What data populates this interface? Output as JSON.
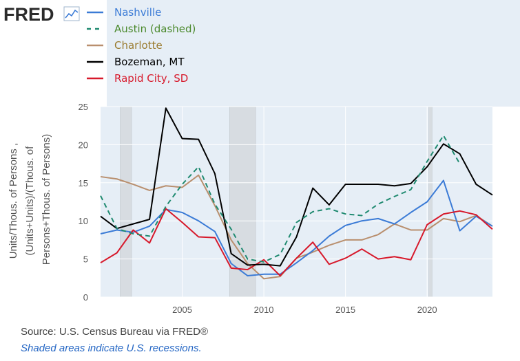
{
  "brand": {
    "logo_text": "FRED",
    "logo_icon": "fred-trend-icon"
  },
  "colors": {
    "nashville": "#3b7bd6",
    "austin": "#1f8a70",
    "charlotte": "#b98f6e",
    "bozeman": "#000000",
    "rapid_city": "#d7192b",
    "plot_bg": "#e6eef6",
    "recession": "#d7dce1",
    "legend_austin_text": "#4c8a2e",
    "legend_charlotte_text": "#9a7b2e"
  },
  "footer": {
    "source": "Source: U.S. Census Bureau via FRED®",
    "recession_note": "Shaded areas indicate U.S. recessions."
  },
  "chart_data": {
    "type": "line",
    "ylabel_lines": [
      "Units/Thous. of Persons ,",
      "(Units+Units)/(Thous. of",
      "Persons+Thous. of Persons)"
    ],
    "xlabel": "",
    "xlim": [
      2000,
      2024
    ],
    "ylim": [
      0,
      25
    ],
    "x_ticks": [
      2005,
      2010,
      2015,
      2020
    ],
    "y_ticks": [
      0,
      5,
      10,
      15,
      20,
      25
    ],
    "grid": true,
    "legend_position": "top-left",
    "recessions": [
      [
        2001.2,
        2001.9
      ],
      [
        2007.9,
        2009.5
      ],
      [
        2020.1,
        2020.3
      ]
    ],
    "x": [
      2000,
      2001,
      2002,
      2003,
      2004,
      2005,
      2006,
      2007,
      2008,
      2009,
      2010,
      2011,
      2012,
      2013,
      2014,
      2015,
      2016,
      2017,
      2018,
      2019,
      2020,
      2021,
      2022,
      2023,
      2024
    ],
    "series": [
      {
        "name": "Nashville",
        "color_key": "nashville",
        "dashed": false,
        "values": [
          8.3,
          8.8,
          8.5,
          9.3,
          11.5,
          11.1,
          10.0,
          8.6,
          4.4,
          2.8,
          3.0,
          3.0,
          4.5,
          6.1,
          8.0,
          9.4,
          10.0,
          10.3,
          9.6,
          11.1,
          12.5,
          15.3,
          8.7,
          10.6,
          9.3
        ]
      },
      {
        "name": "Austin (dashed)",
        "color_key": "austin",
        "dashed": true,
        "values": [
          13.3,
          9.0,
          8.3,
          8.0,
          11.9,
          14.8,
          17.1,
          12.2,
          8.9,
          5.0,
          4.6,
          5.6,
          9.8,
          11.2,
          11.6,
          10.9,
          10.7,
          12.2,
          13.2,
          14.1,
          17.8,
          21.2,
          17.5,
          null,
          null
        ]
      },
      {
        "name": "Charlotte",
        "color_key": "charlotte",
        "dashed": false,
        "values": [
          15.8,
          15.5,
          14.8,
          14.0,
          14.6,
          14.4,
          16.0,
          12.0,
          7.5,
          4.4,
          2.4,
          2.7,
          5.1,
          5.9,
          6.8,
          7.5,
          7.5,
          8.2,
          9.6,
          8.8,
          8.8,
          10.3,
          9.9,
          10.7,
          9.3
        ]
      },
      {
        "name": "Bozeman, MT",
        "color_key": "bozeman",
        "dashed": false,
        "values": [
          10.6,
          9.0,
          9.6,
          10.2,
          24.8,
          20.8,
          20.7,
          16.2,
          5.7,
          4.2,
          4.3,
          4.1,
          7.9,
          14.3,
          12.1,
          14.8,
          14.8,
          14.8,
          14.6,
          14.9,
          17.1,
          20.1,
          18.8,
          14.8,
          13.4
        ]
      },
      {
        "name": "Rapid City, SD",
        "color_key": "rapid_city",
        "dashed": false,
        "values": [
          4.5,
          5.8,
          8.8,
          7.1,
          11.6,
          9.8,
          7.9,
          7.8,
          3.8,
          3.6,
          4.9,
          2.8,
          5.1,
          7.2,
          4.3,
          5.1,
          6.3,
          5.0,
          5.3,
          4.9,
          9.5,
          10.9,
          11.3,
          10.8,
          8.9
        ]
      }
    ]
  }
}
